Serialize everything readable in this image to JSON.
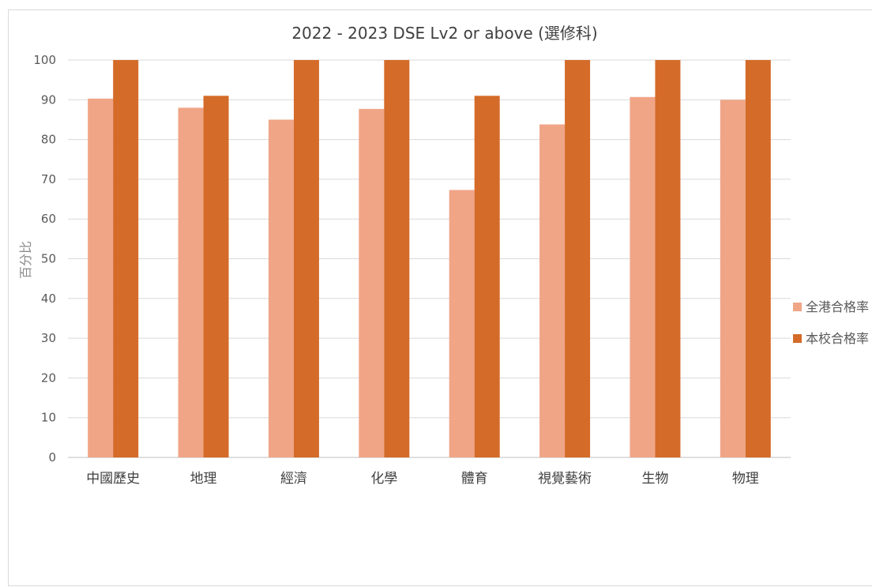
{
  "chart_data": {
    "type": "bar",
    "title": "2022 - 2023 DSE Lv2 or above (選修科)",
    "xlabel": "",
    "ylabel": "百分比",
    "ylim": [
      0,
      100
    ],
    "yticks": [
      0,
      10,
      20,
      30,
      40,
      50,
      60,
      70,
      80,
      90,
      100
    ],
    "categories": [
      "中國歷史",
      "地理",
      "經濟",
      "化學",
      "體育",
      "視覺藝術",
      "生物",
      "物理"
    ],
    "series": [
      {
        "name": "全港合格率",
        "color": "#f0a587",
        "values": [
          90.3,
          88,
          85,
          87.7,
          67.3,
          83.8,
          90.7,
          90
        ]
      },
      {
        "name": "本校合格率",
        "color": "#d46b29",
        "values": [
          100,
          91,
          100,
          100,
          91,
          100,
          100,
          100
        ]
      }
    ],
    "grid": true,
    "legend_position": "right"
  }
}
